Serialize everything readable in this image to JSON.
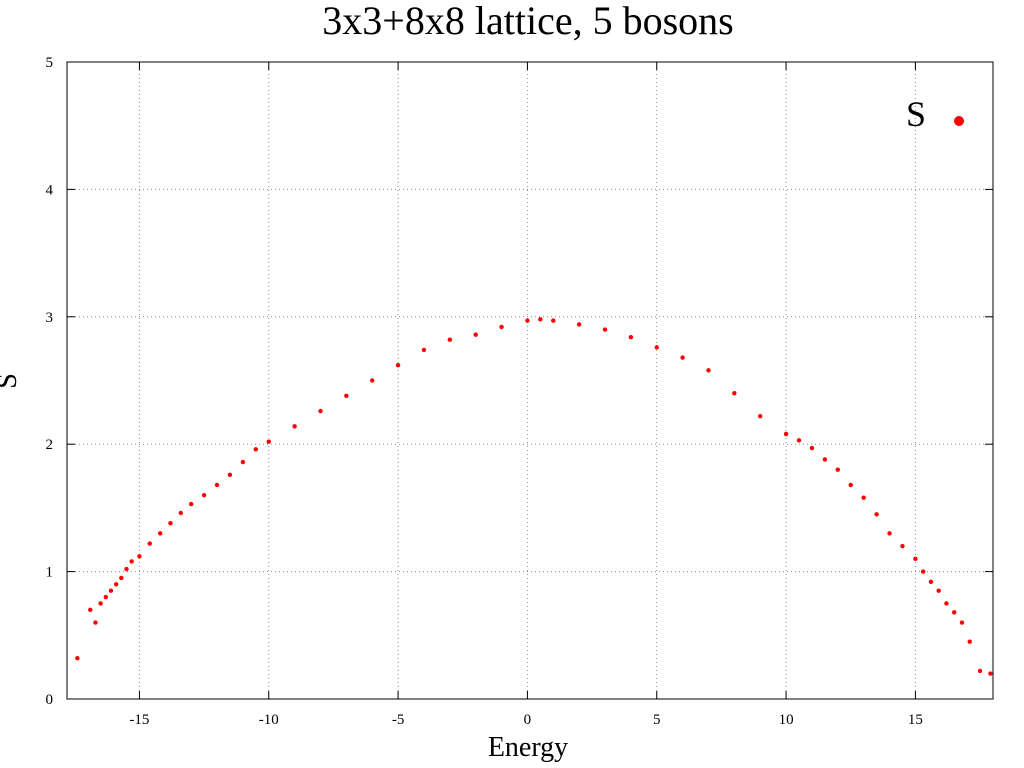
{
  "chart_data": {
    "type": "scatter",
    "title": "3x3+8x8 lattice, 5 bosons",
    "xlabel": "Energy",
    "ylabel": "S",
    "xlim": [
      -17.8,
      18
    ],
    "ylim": [
      0,
      5
    ],
    "xticks": [
      -15,
      -10,
      -5,
      0,
      5,
      10,
      15
    ],
    "yticks": [
      0,
      1,
      2,
      3,
      4,
      5
    ],
    "grid": true,
    "legend_position": "top-right",
    "series": [
      {
        "name": "S",
        "color": "#ff0000",
        "marker": "circle",
        "x": [
          -17.4,
          -16.9,
          -16.7,
          -16.5,
          -16.3,
          -16.1,
          -15.9,
          -15.7,
          -15.5,
          -15.3,
          -15.0,
          -14.6,
          -14.2,
          -13.8,
          -13.4,
          -13.0,
          -12.5,
          -12.0,
          -11.5,
          -11.0,
          -10.5,
          -10.0,
          -9.0,
          -8.0,
          -7.0,
          -6.0,
          -5.0,
          -4.0,
          -3.0,
          -2.0,
          -1.0,
          0.0,
          0.5,
          1.0,
          2.0,
          3.0,
          4.0,
          5.0,
          6.0,
          7.0,
          8.0,
          9.0,
          10.0,
          10.5,
          11.0,
          11.5,
          12.0,
          12.5,
          13.0,
          13.5,
          14.0,
          14.5,
          15.0,
          15.3,
          15.6,
          15.9,
          16.2,
          16.5,
          16.8,
          17.1,
          17.5,
          17.9
        ],
        "y": [
          0.32,
          0.7,
          0.6,
          0.75,
          0.8,
          0.85,
          0.9,
          0.95,
          1.02,
          1.08,
          1.12,
          1.22,
          1.3,
          1.38,
          1.46,
          1.53,
          1.6,
          1.68,
          1.76,
          1.86,
          1.96,
          2.02,
          2.14,
          2.26,
          2.38,
          2.5,
          2.62,
          2.74,
          2.82,
          2.86,
          2.92,
          2.97,
          2.98,
          2.97,
          2.94,
          2.9,
          2.84,
          2.76,
          2.68,
          2.58,
          2.4,
          2.22,
          2.08,
          2.03,
          1.97,
          1.88,
          1.8,
          1.68,
          1.58,
          1.45,
          1.3,
          1.2,
          1.1,
          1.0,
          0.92,
          0.85,
          0.75,
          0.68,
          0.6,
          0.45,
          0.22,
          0.2
        ]
      }
    ]
  }
}
